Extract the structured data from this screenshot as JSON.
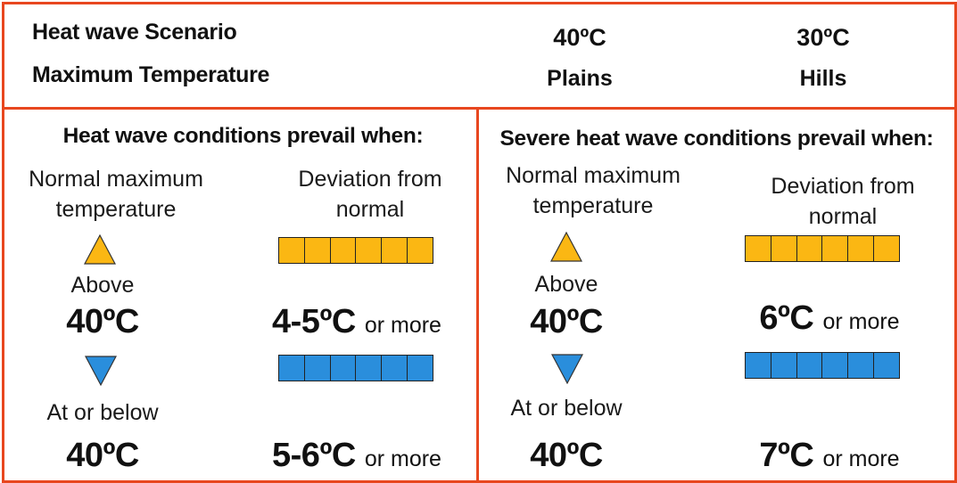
{
  "header": {
    "scenario_label": "Heat wave Scenario",
    "max_temp_label": "Maximum Temperature",
    "plains_value": "40ºC",
    "plains_label": "Plains",
    "hills_value": "30ºC",
    "hills_label": "Hills"
  },
  "heat_wave": {
    "title": "Heat wave conditions prevail when:",
    "normal_max_label": "Normal maximum temperature",
    "deviation_label": "Deviation from normal",
    "above_label": "Above",
    "above_value": "40ºC",
    "above_deviation": "4-5ºC",
    "at_below_label": "At or below",
    "at_below_value": "40ºC",
    "at_below_deviation": "5-6ºC",
    "or_more": "or more"
  },
  "severe_heat_wave": {
    "title": "Severe heat wave conditions prevail when:",
    "normal_max_label": "Normal maximum temperature",
    "deviation_label": "Deviation from normal",
    "above_label": "Above",
    "above_value": "40ºC",
    "above_deviation": "6ºC",
    "at_below_label": "At or below",
    "at_below_value": "40ºC",
    "at_below_deviation": "7ºC",
    "or_more": "or more"
  },
  "colors": {
    "border": "#e8471f",
    "above_yellow": "#fbb713",
    "below_blue": "#2a8edc"
  },
  "icons": {
    "up": "triangle-up-icon",
    "down": "triangle-down-icon"
  }
}
